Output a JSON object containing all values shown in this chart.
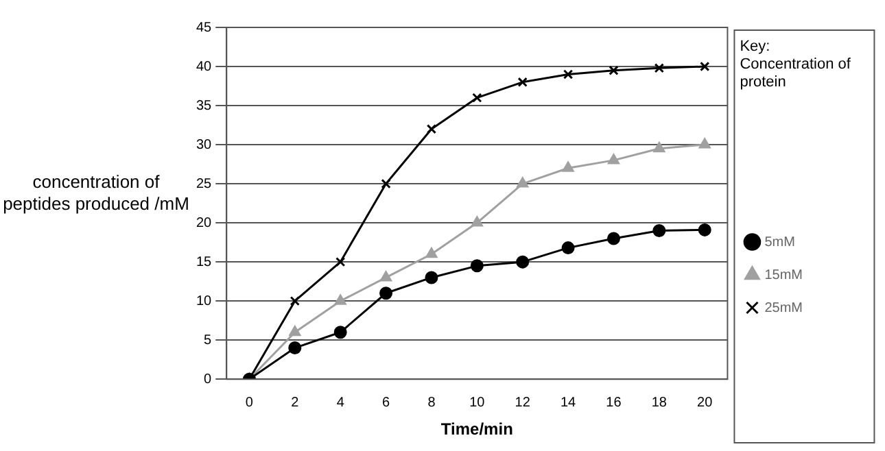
{
  "chart_data": {
    "type": "line",
    "xlabel": "Time/min",
    "ylabel": "concentration of peptides produced /mM",
    "legend_title": "Key: Concentration of protein",
    "legend": "right",
    "grid": "y",
    "categories": [
      "0",
      "2",
      "4",
      "6",
      "8",
      "10",
      "12",
      "14",
      "16",
      "18",
      "20"
    ],
    "ylim": [
      0,
      45
    ],
    "yticks": [
      0,
      5,
      10,
      15,
      20,
      25,
      30,
      35,
      40,
      45
    ],
    "series": [
      {
        "name": "5mM",
        "color": "#000000",
        "marker": "circle",
        "values": [
          0,
          4,
          6,
          11,
          13,
          14.5,
          15,
          16.8,
          18,
          19,
          19.1
        ]
      },
      {
        "name": "15mM",
        "color": "#a0a0a0",
        "marker": "triangle",
        "values": [
          0,
          6,
          10,
          13,
          16,
          20,
          25,
          27,
          28,
          29.5,
          30
        ]
      },
      {
        "name": "25mM",
        "color": "#000000",
        "marker": "cross",
        "values": [
          0,
          10,
          15,
          25,
          32,
          36,
          38,
          39,
          39.5,
          39.8,
          40
        ]
      }
    ]
  }
}
